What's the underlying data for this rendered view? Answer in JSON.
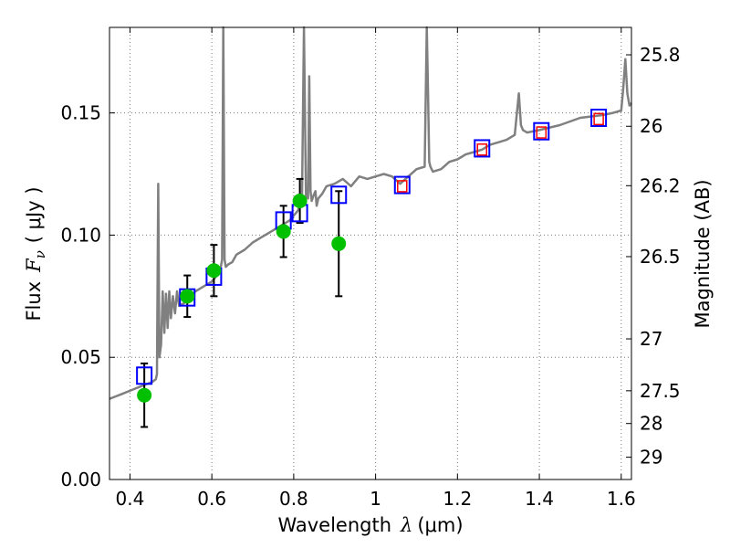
{
  "chart_data": {
    "type": "scatter",
    "xlabel_text": "Wavelength",
    "xlabel_symbol": "λ",
    "xlabel_unit": "(μm)",
    "ylabel_text": "Flux",
    "ylabel_symbol": "F",
    "ylabel_sub": "ν",
    "ylabel_unit": "( μJy )",
    "y2label": "Magnitude (AB)",
    "xlim": [
      0.35,
      1.625
    ],
    "ylim": [
      0.0,
      0.185
    ],
    "grid": true,
    "x_ticks": [
      {
        "v": 0.4,
        "label": "0.4"
      },
      {
        "v": 0.6,
        "label": "0.6"
      },
      {
        "v": 0.8,
        "label": "0.8"
      },
      {
        "v": 1.0,
        "label": "1"
      },
      {
        "v": 1.2,
        "label": "1.2"
      },
      {
        "v": 1.4,
        "label": "1.4"
      },
      {
        "v": 1.6,
        "label": "1.6"
      }
    ],
    "y_ticks": [
      {
        "v": 0.0,
        "label": "0.00"
      },
      {
        "v": 0.05,
        "label": "0.05"
      },
      {
        "v": 0.1,
        "label": "0.10"
      },
      {
        "v": 0.15,
        "label": "0.15"
      }
    ],
    "mag_ticks": [
      {
        "v": 25.8,
        "label": "25.8"
      },
      {
        "v": 26.0,
        "label": "26"
      },
      {
        "v": 26.2,
        "label": "26.2"
      },
      {
        "v": 26.5,
        "label": "26.5"
      },
      {
        "v": 27.0,
        "label": "27"
      },
      {
        "v": 27.5,
        "label": "27.5"
      },
      {
        "v": 28.0,
        "label": "28"
      },
      {
        "v": 29.0,
        "label": "29"
      }
    ],
    "colors": {
      "sed": "#808080",
      "observed": "#00c000",
      "model_blue": "#0000ff",
      "model_red": "#ff0000",
      "errorbar": "#000000",
      "grid": "#777777"
    },
    "series": [
      {
        "name": "model SED",
        "kind": "line",
        "x": [
          0.35,
          0.38,
          0.41,
          0.44,
          0.455,
          0.463,
          0.466,
          0.469,
          0.472,
          0.476,
          0.48,
          0.484,
          0.488,
          0.492,
          0.496,
          0.5,
          0.505,
          0.51,
          0.515,
          0.52,
          0.53,
          0.54,
          0.55,
          0.56,
          0.57,
          0.58,
          0.59,
          0.6,
          0.61,
          0.62,
          0.625,
          0.628,
          0.631,
          0.634,
          0.64,
          0.65,
          0.66,
          0.68,
          0.7,
          0.72,
          0.74,
          0.76,
          0.78,
          0.79,
          0.8,
          0.81,
          0.815,
          0.82,
          0.825,
          0.83,
          0.835,
          0.838,
          0.841,
          0.844,
          0.848,
          0.853,
          0.856,
          0.86,
          0.87,
          0.88,
          0.9,
          0.92,
          0.94,
          0.96,
          0.98,
          1.0,
          1.02,
          1.04,
          1.06,
          1.08,
          1.1,
          1.12,
          1.125,
          1.128,
          1.131,
          1.134,
          1.14,
          1.16,
          1.18,
          1.2,
          1.22,
          1.24,
          1.26,
          1.28,
          1.3,
          1.32,
          1.34,
          1.35,
          1.355,
          1.36,
          1.37,
          1.4,
          1.45,
          1.5,
          1.55,
          1.58,
          1.6,
          1.605,
          1.61,
          1.615,
          1.62,
          1.625
        ],
        "y": [
          0.033,
          0.035,
          0.037,
          0.039,
          0.04,
          0.041,
          0.043,
          0.121,
          0.05,
          0.055,
          0.077,
          0.06,
          0.076,
          0.062,
          0.077,
          0.066,
          0.075,
          0.068,
          0.077,
          0.071,
          0.072,
          0.073,
          0.075,
          0.077,
          0.078,
          0.079,
          0.08,
          0.081,
          0.083,
          0.085,
          0.09,
          0.185,
          0.09,
          0.087,
          0.088,
          0.089,
          0.092,
          0.094,
          0.097,
          0.099,
          0.101,
          0.103,
          0.105,
          0.106,
          0.108,
          0.11,
          0.112,
          0.113,
          0.185,
          0.116,
          0.115,
          0.165,
          0.118,
          0.114,
          0.116,
          0.118,
          0.112,
          0.115,
          0.117,
          0.12,
          0.121,
          0.123,
          0.12,
          0.124,
          0.123,
          0.124,
          0.125,
          0.124,
          0.121,
          0.124,
          0.127,
          0.128,
          0.185,
          0.16,
          0.13,
          0.128,
          0.126,
          0.127,
          0.13,
          0.131,
          0.133,
          0.134,
          0.135,
          0.137,
          0.138,
          0.139,
          0.141,
          0.158,
          0.145,
          0.143,
          0.142,
          0.143,
          0.145,
          0.148,
          0.149,
          0.15,
          0.151,
          0.16,
          0.172,
          0.158,
          0.153,
          0.154
        ]
      },
      {
        "name": "observed photometry",
        "kind": "points_with_errors",
        "x": [
          0.435,
          0.54,
          0.605,
          0.775,
          0.815,
          0.91
        ],
        "y": [
          0.0345,
          0.075,
          0.0855,
          0.1015,
          0.114,
          0.0965
        ],
        "err": [
          0.013,
          0.0085,
          0.0105,
          0.0105,
          0.009,
          0.0215
        ]
      },
      {
        "name": "model fluxes",
        "kind": "open_squares",
        "x": [
          0.435,
          0.54,
          0.605,
          0.775,
          0.815,
          0.91,
          1.065,
          1.26,
          1.405,
          1.545
        ],
        "y": [
          0.0425,
          0.0745,
          0.083,
          0.106,
          0.109,
          0.1165,
          0.1205,
          0.1355,
          0.1425,
          0.148
        ]
      },
      {
        "name": "model fluxes (alt)",
        "kind": "small_red_squares",
        "x": [
          1.065,
          1.26,
          1.405,
          1.545
        ],
        "y": [
          0.12,
          0.135,
          0.142,
          0.1475
        ]
      }
    ]
  }
}
